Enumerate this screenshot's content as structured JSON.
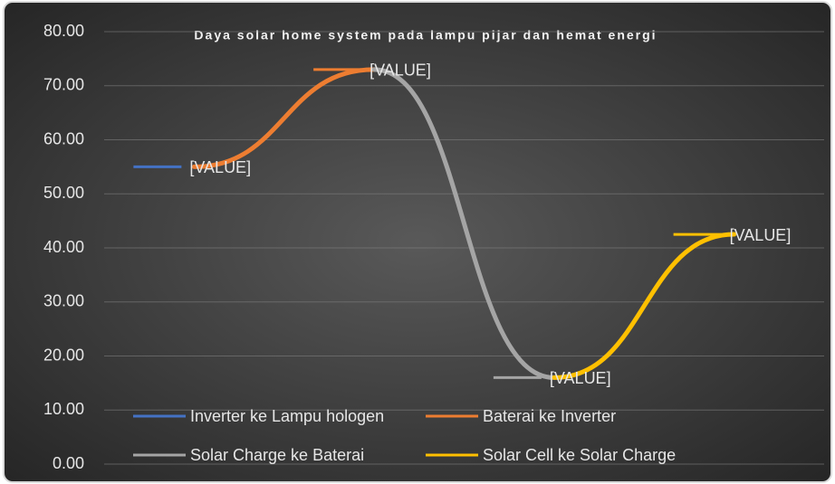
{
  "chart_data": {
    "type": "line",
    "title": "Daya solar home system pada lampu pijar dan hemat energi",
    "categories": [
      null,
      null,
      null,
      null
    ],
    "series": [
      {
        "name": "Inverter ke Lampu hologen",
        "color": "#4472c4",
        "values": [
          55.0,
          null,
          null,
          null
        ],
        "value_labels": [
          "[VALUE]",
          null,
          null,
          null
        ]
      },
      {
        "name": "Baterai ke Inverter",
        "color": "#ed7d31",
        "values": [
          55.0,
          73.0,
          null,
          null
        ],
        "value_labels": [
          null,
          "[VALUE]",
          null,
          null
        ]
      },
      {
        "name": "Solar Charge ke Baterai",
        "color": "#a5a5a5",
        "values": [
          null,
          73.0,
          16.0,
          null
        ],
        "value_labels": [
          null,
          null,
          "[VALUE]",
          null
        ]
      },
      {
        "name": "Solar Cell ke Solar Charge",
        "color": "#ffc000",
        "values": [
          null,
          null,
          16.0,
          42.5
        ],
        "value_labels": [
          null,
          null,
          null,
          "[VALUE]"
        ]
      }
    ],
    "ylim": [
      0,
      80
    ],
    "yticks": [
      {
        "value": 0,
        "label": "0.00"
      },
      {
        "value": 10,
        "label": "10.00"
      },
      {
        "value": 20,
        "label": "20.00"
      },
      {
        "value": 30,
        "label": "30.00"
      },
      {
        "value": 40,
        "label": "40.00"
      },
      {
        "value": 50,
        "label": "50.00"
      },
      {
        "value": 60,
        "label": "60.00"
      },
      {
        "value": 70,
        "label": "70.00"
      },
      {
        "value": 80,
        "label": "80.00"
      }
    ],
    "grid": true,
    "smooth": true,
    "legend": "bottom"
  }
}
